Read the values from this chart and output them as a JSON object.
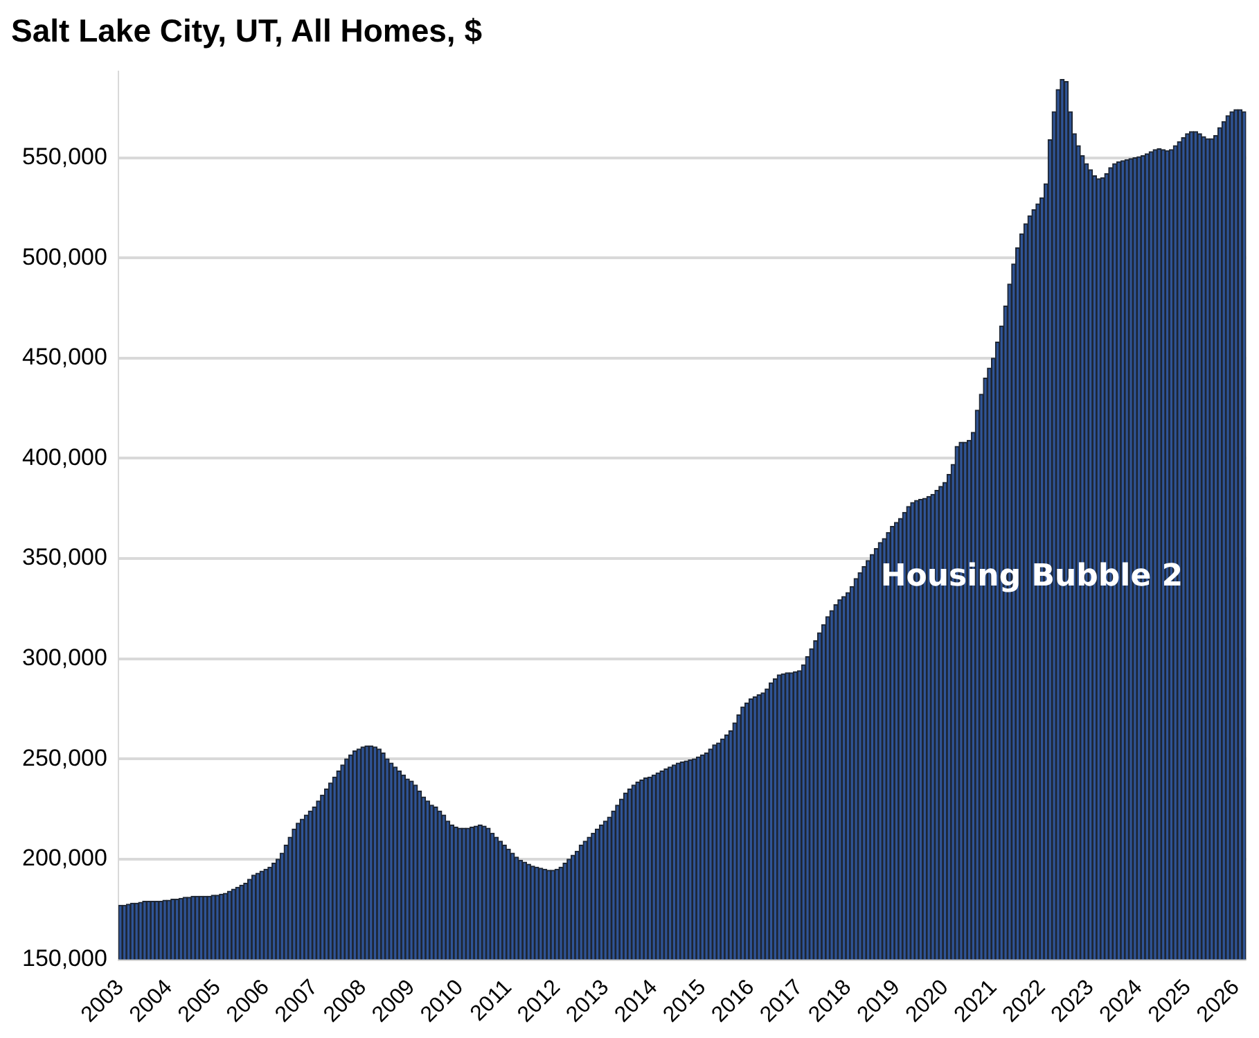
{
  "chart_data": {
    "type": "bar",
    "title": "Salt Lake City, UT, All Homes, $",
    "annotations": [
      "Housing Bubble 2"
    ],
    "categories": [
      "2003",
      null,
      null,
      null,
      null,
      null,
      null,
      null,
      null,
      null,
      null,
      null,
      "2004",
      null,
      null,
      null,
      null,
      null,
      null,
      null,
      null,
      null,
      null,
      null,
      "2005",
      null,
      null,
      null,
      null,
      null,
      null,
      null,
      null,
      null,
      null,
      null,
      "2006",
      null,
      null,
      null,
      null,
      null,
      null,
      null,
      null,
      null,
      null,
      null,
      "2007",
      null,
      null,
      null,
      null,
      null,
      null,
      null,
      null,
      null,
      null,
      null,
      "2008",
      null,
      null,
      null,
      null,
      null,
      null,
      null,
      null,
      null,
      null,
      null,
      "2009",
      null,
      null,
      null,
      null,
      null,
      null,
      null,
      null,
      null,
      null,
      null,
      "2010",
      null,
      null,
      null,
      null,
      null,
      null,
      null,
      null,
      null,
      null,
      null,
      "2011",
      null,
      null,
      null,
      null,
      null,
      null,
      null,
      null,
      null,
      null,
      null,
      "2012",
      null,
      null,
      null,
      null,
      null,
      null,
      null,
      null,
      null,
      null,
      null,
      "2013",
      null,
      null,
      null,
      null,
      null,
      null,
      null,
      null,
      null,
      null,
      null,
      "2014",
      null,
      null,
      null,
      null,
      null,
      null,
      null,
      null,
      null,
      null,
      null,
      "2015",
      null,
      null,
      null,
      null,
      null,
      null,
      null,
      null,
      null,
      null,
      null,
      "2016",
      null,
      null,
      null,
      null,
      null,
      null,
      null,
      null,
      null,
      null,
      null,
      "2017",
      null,
      null,
      null,
      null,
      null,
      null,
      null,
      null,
      null,
      null,
      null,
      "2018",
      null,
      null,
      null,
      null,
      null,
      null,
      null,
      null,
      null,
      null,
      null,
      "2019",
      null,
      null,
      null,
      null,
      null,
      null,
      null,
      null,
      null,
      null,
      null,
      "2020",
      null,
      null,
      null,
      null,
      null,
      null,
      null,
      null,
      null,
      null,
      null,
      "2021",
      null,
      null,
      null,
      null,
      null,
      null,
      null,
      null,
      null,
      null,
      null,
      "2022",
      null,
      null,
      null,
      null,
      null,
      null,
      null,
      null,
      null,
      null,
      null,
      "2023",
      null,
      null,
      null,
      null,
      null,
      null,
      null,
      null,
      null,
      null,
      null,
      "2024",
      null,
      null,
      null,
      null,
      null,
      null,
      null,
      null,
      null,
      null,
      null,
      "2025",
      null,
      null,
      null,
      null,
      null,
      null,
      null,
      null,
      null,
      null,
      null,
      "2026",
      null,
      null
    ],
    "values": [
      177000,
      177000,
      177500,
      178000,
      178000,
      178500,
      179000,
      179000,
      179000,
      179000,
      179000,
      179500,
      179500,
      180000,
      180000,
      180500,
      181000,
      181000,
      181500,
      181500,
      181500,
      181500,
      181500,
      182000,
      182000,
      182500,
      183000,
      184000,
      185000,
      186000,
      187000,
      188000,
      190000,
      192000,
      193000,
      194000,
      195000,
      196000,
      198000,
      200000,
      203000,
      207000,
      211000,
      215000,
      218000,
      220000,
      222000,
      224000,
      226000,
      229000,
      232000,
      235000,
      238000,
      241000,
      244000,
      247000,
      250000,
      252000,
      254000,
      255000,
      256000,
      256500,
      256500,
      256000,
      255000,
      253000,
      250000,
      248000,
      246000,
      244000,
      242000,
      240000,
      239000,
      237000,
      234000,
      231000,
      229000,
      227000,
      226000,
      224000,
      222000,
      219000,
      217000,
      216000,
      215500,
      215500,
      215500,
      216000,
      216500,
      217000,
      216500,
      215500,
      213000,
      211000,
      209000,
      207000,
      205000,
      203000,
      201000,
      199500,
      198500,
      197500,
      196500,
      196000,
      195500,
      195000,
      194500,
      194500,
      195000,
      196000,
      198000,
      200000,
      202000,
      204000,
      207000,
      209000,
      211000,
      213000,
      215000,
      217000,
      219000,
      221000,
      224000,
      227000,
      230000,
      233000,
      235000,
      237000,
      238500,
      239500,
      240500,
      241000,
      242000,
      243000,
      244000,
      245000,
      246000,
      247000,
      248000,
      248500,
      249000,
      249500,
      250000,
      251000,
      252000,
      253000,
      255000,
      257000,
      258000,
      260000,
      262000,
      264000,
      268000,
      272000,
      276000,
      278000,
      280000,
      281000,
      282000,
      283000,
      285000,
      288000,
      290000,
      292000,
      292500,
      293000,
      293000,
      293500,
      294000,
      297000,
      301000,
      305000,
      309000,
      313000,
      317000,
      321000,
      324000,
      327000,
      329500,
      331000,
      333000,
      336000,
      340000,
      343000,
      346000,
      349000,
      352000,
      355000,
      358000,
      360000,
      363000,
      366000,
      368000,
      370000,
      373000,
      376000,
      378000,
      379000,
      379500,
      380000,
      381000,
      382000,
      384000,
      386000,
      388000,
      392000,
      397000,
      406000,
      408000,
      408000,
      409000,
      413000,
      424000,
      432000,
      440000,
      445000,
      450000,
      458000,
      466000,
      476000,
      487000,
      497000,
      505000,
      512000,
      517000,
      521000,
      524000,
      527000,
      530000,
      537000,
      559000,
      573000,
      584000,
      589000,
      588000,
      573000,
      562000,
      556000,
      551000,
      547000,
      544000,
      541000,
      539500,
      540000,
      542000,
      545000,
      547000,
      548000,
      548500,
      549000,
      549500,
      550000,
      550500,
      551000,
      552000,
      553000,
      554000,
      554500,
      554000,
      553500,
      554000,
      556000,
      558000,
      560000,
      562000,
      563000,
      563000,
      562000,
      560500,
      559500,
      559500,
      561000,
      565000,
      568000,
      571000,
      573000,
      574000,
      574000,
      573000
    ],
    "color": "#2f5496",
    "ylim": [
      150000,
      593000
    ],
    "yticks": [
      {
        "value": 150000,
        "label": "150,000"
      },
      {
        "value": 200000,
        "label": "200,000"
      },
      {
        "value": 250000,
        "label": "250,000"
      },
      {
        "value": 300000,
        "label": "300,000"
      },
      {
        "value": 350000,
        "label": "350,000"
      },
      {
        "value": 400000,
        "label": "400,000"
      },
      {
        "value": 450000,
        "label": "450,000"
      },
      {
        "value": 500000,
        "label": "500,000"
      },
      {
        "value": 550000,
        "label": "550,000"
      }
    ],
    "grid": "y",
    "legend": false
  }
}
